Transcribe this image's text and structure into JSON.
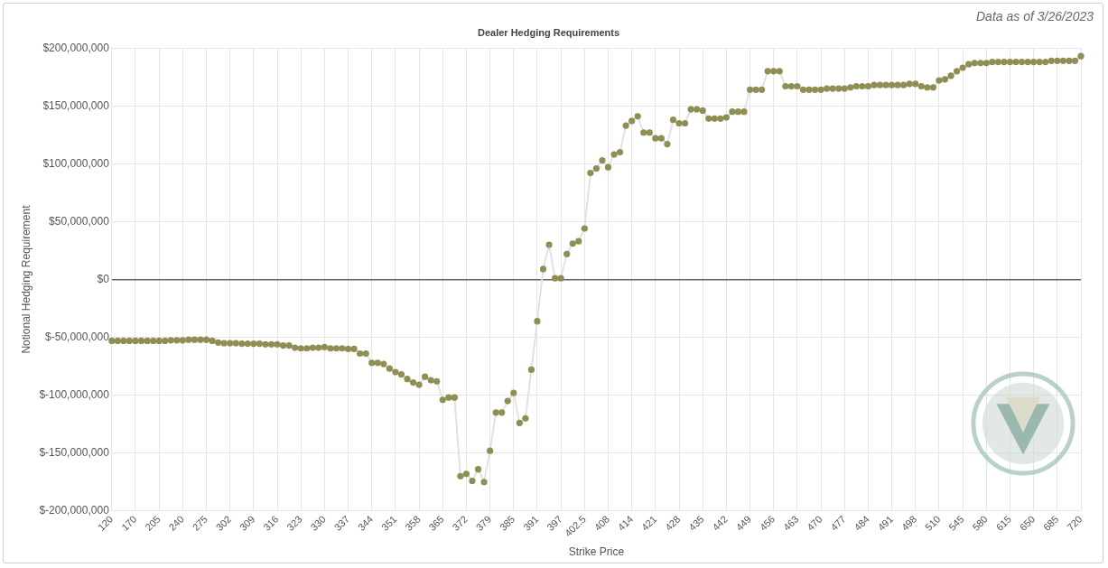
{
  "chart_data": {
    "type": "line",
    "title": "Dealer Hedging Requirements",
    "subtitle": "Data as of 3/26/2023",
    "x_label": "Strike Price",
    "y_label": "Notional Hedging Requirement",
    "categories": [
      "120",
      null,
      null,
      null,
      "170",
      null,
      null,
      null,
      "205",
      null,
      null,
      null,
      "240",
      null,
      null,
      null,
      "275",
      null,
      null,
      null,
      "302",
      null,
      null,
      null,
      "309",
      null,
      null,
      null,
      "316",
      null,
      null,
      null,
      "323",
      null,
      null,
      null,
      "330",
      null,
      null,
      null,
      "337",
      null,
      null,
      null,
      "344",
      null,
      null,
      null,
      "351",
      null,
      null,
      null,
      "358",
      null,
      null,
      null,
      "365",
      null,
      null,
      null,
      "372",
      null,
      null,
      null,
      "379",
      null,
      null,
      null,
      "385",
      null,
      null,
      null,
      "391",
      null,
      null,
      null,
      "397",
      null,
      null,
      null,
      "402.5",
      null,
      null,
      null,
      "408",
      null,
      null,
      null,
      "414",
      null,
      null,
      null,
      "421",
      null,
      null,
      null,
      "428",
      null,
      null,
      null,
      "435",
      null,
      null,
      null,
      "442",
      null,
      null,
      null,
      "449",
      null,
      null,
      null,
      "456",
      null,
      null,
      null,
      "463",
      null,
      null,
      null,
      "470",
      null,
      null,
      null,
      "477",
      null,
      null,
      null,
      "484",
      null,
      null,
      null,
      "491",
      null,
      null,
      null,
      "498",
      null,
      null,
      null,
      "510",
      null,
      null,
      null,
      "545",
      null,
      null,
      null,
      "580",
      null,
      null,
      null,
      "615",
      null,
      null,
      null,
      "650",
      null,
      null,
      null,
      "685",
      null,
      null,
      null,
      "720"
    ],
    "values": [
      -53000000,
      -53000000,
      -53000000,
      -53000000,
      -53000000,
      -53000000,
      -53000000,
      -53000000,
      -53000000,
      -53000000,
      -52500000,
      -52500000,
      -52500000,
      -52000000,
      -52000000,
      -52000000,
      -52000000,
      -53000000,
      -54500000,
      -55000000,
      -55000000,
      -55000000,
      -55500000,
      -55500000,
      -55500000,
      -55500000,
      -56000000,
      -56000000,
      -56000000,
      -57000000,
      -57000000,
      -59000000,
      -59500000,
      -59500000,
      -59000000,
      -59000000,
      -58500000,
      -59500000,
      -59500000,
      -59500000,
      -60000000,
      -60000000,
      -64000000,
      -64000000,
      -72000000,
      -72000000,
      -73000000,
      -77000000,
      -80000000,
      -82000000,
      -86000000,
      -89000000,
      -91000000,
      -84000000,
      -87000000,
      -88000000,
      -104000000,
      -102000000,
      -102000000,
      -170000000,
      -168000000,
      -174000000,
      -164000000,
      -175000000,
      -148000000,
      -115000000,
      -115000000,
      -105000000,
      -98000000,
      -124000000,
      -120000000,
      -78000000,
      -36000000,
      9000000,
      30000000,
      1000000,
      1000000,
      22000000,
      31000000,
      33000000,
      44000000,
      92000000,
      96000000,
      103000000,
      97000000,
      108000000,
      110000000,
      133000000,
      137000000,
      141000000,
      127000000,
      127000000,
      122000000,
      122000000,
      117000000,
      138000000,
      135000000,
      135000000,
      147000000,
      147000000,
      146000000,
      139000000,
      139000000,
      139000000,
      140000000,
      145000000,
      145000000,
      145000000,
      164000000,
      164000000,
      164000000,
      180000000,
      180000000,
      180000000,
      167000000,
      167000000,
      167000000,
      164000000,
      164000000,
      164000000,
      164000000,
      165000000,
      165000000,
      165000000,
      165000000,
      166000000,
      167000000,
      167000000,
      167000000,
      168000000,
      168000000,
      168000000,
      168000000,
      168000000,
      168000000,
      169000000,
      169000000,
      167000000,
      166000000,
      166000000,
      172000000,
      173000000,
      176000000,
      180000000,
      183000000,
      186000000,
      187000000,
      187000000,
      187000000,
      188000000,
      188000000,
      188000000,
      188000000,
      188000000,
      188000000,
      188000000,
      188000000,
      188000000,
      188000000,
      189000000,
      189000000,
      189000000,
      189000000,
      189000000,
      193000000
    ],
    "color": "#8f8e55",
    "marker": "circle",
    "line_style": "solid",
    "ylim": [
      -200000000,
      200000000
    ],
    "yticks": [
      {
        "value": -200000000,
        "label": "$-200,000,000"
      },
      {
        "value": -150000000,
        "label": "$-150,000,000"
      },
      {
        "value": -100000000,
        "label": "$-100,000,000"
      },
      {
        "value": -50000000,
        "label": "$-50,000,000"
      },
      {
        "value": 0,
        "label": "$0"
      },
      {
        "value": 50000000,
        "label": "$50,000,000"
      },
      {
        "value": 100000000,
        "label": "$100,000,000"
      },
      {
        "value": 150000000,
        "label": "$150,000,000"
      },
      {
        "value": 200000000,
        "label": "$200,000,000"
      }
    ],
    "grid": true
  }
}
